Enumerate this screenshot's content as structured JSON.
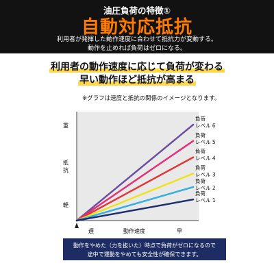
{
  "header": {
    "subtitle": "油圧負荷の特徴①",
    "title": "自動対応抵抗",
    "line1": "利用者が発揮した動作速度に合わせて抵抗力が変動する。",
    "line2": "動作を止めれば負荷はゼロになる。"
  },
  "headline": {
    "line1": "利用者の動作速度に応じて負荷が変わる",
    "line2": "早い動作ほど抵抗が高まる"
  },
  "note": "※グラフは速度と抵抗の関係のイメージとなります。",
  "colors": {
    "header_bg": "#121212",
    "accent_orange": "#ff7a00",
    "highlight_yellow": "#ffd84a",
    "footer_bg": "#1d2d63"
  },
  "chart_data": {
    "type": "line",
    "xlabel": "動作速度",
    "ylabel": "抵抗",
    "x_ticks": [
      "遅",
      "早"
    ],
    "y_ticks": [
      "重",
      "軽"
    ],
    "x": [
      0,
      1
    ],
    "ylim": [
      0,
      1
    ],
    "series": [
      {
        "name_line1": "負荷",
        "name_line2": "レベル 6",
        "color": "#6a4fa0",
        "values": [
          0,
          1.0
        ]
      },
      {
        "name_line1": "負荷",
        "name_line2": "レベル 5",
        "color": "#e4307a",
        "values": [
          0,
          0.83
        ]
      },
      {
        "name_line1": "負荷",
        "name_line2": "レベル 4",
        "color": "#e03838",
        "values": [
          0,
          0.66
        ]
      },
      {
        "name_line1": "負荷",
        "name_line2": "レベル 3",
        "color": "#f0e21a",
        "values": [
          0,
          0.49
        ]
      },
      {
        "name_line1": "負荷",
        "name_line2": "レベル 2",
        "color": "#35b0e0",
        "values": [
          0,
          0.35
        ]
      },
      {
        "name_line1": "負荷",
        "name_line2": "レベル 1",
        "color": "#1e2e6e",
        "values": [
          0,
          0.22
        ]
      }
    ]
  },
  "footer": {
    "line1": "動作をやめた（力を抜いた）時点で負荷がゼロになるので",
    "line2": "途中で運動をやめても安全性が確保できます。"
  }
}
